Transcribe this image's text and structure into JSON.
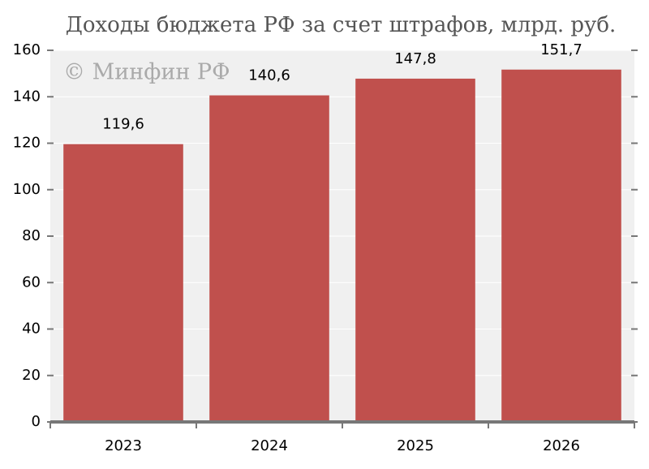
{
  "chart_data": {
    "type": "bar",
    "title": "Доходы бюджета РФ за счет штрафов, млрд. руб.",
    "watermark": "© Минфин РФ",
    "categories": [
      "2023",
      "2024",
      "2025",
      "2026"
    ],
    "values": [
      119.6,
      140.6,
      147.8,
      151.7
    ],
    "value_labels": [
      "119,6",
      "140,6",
      "147,8",
      "151,7"
    ],
    "color": "#c0504d",
    "ylim": [
      0,
      160
    ],
    "yticks": [
      0,
      20,
      40,
      60,
      80,
      100,
      120,
      140,
      160
    ],
    "grid": true
  }
}
